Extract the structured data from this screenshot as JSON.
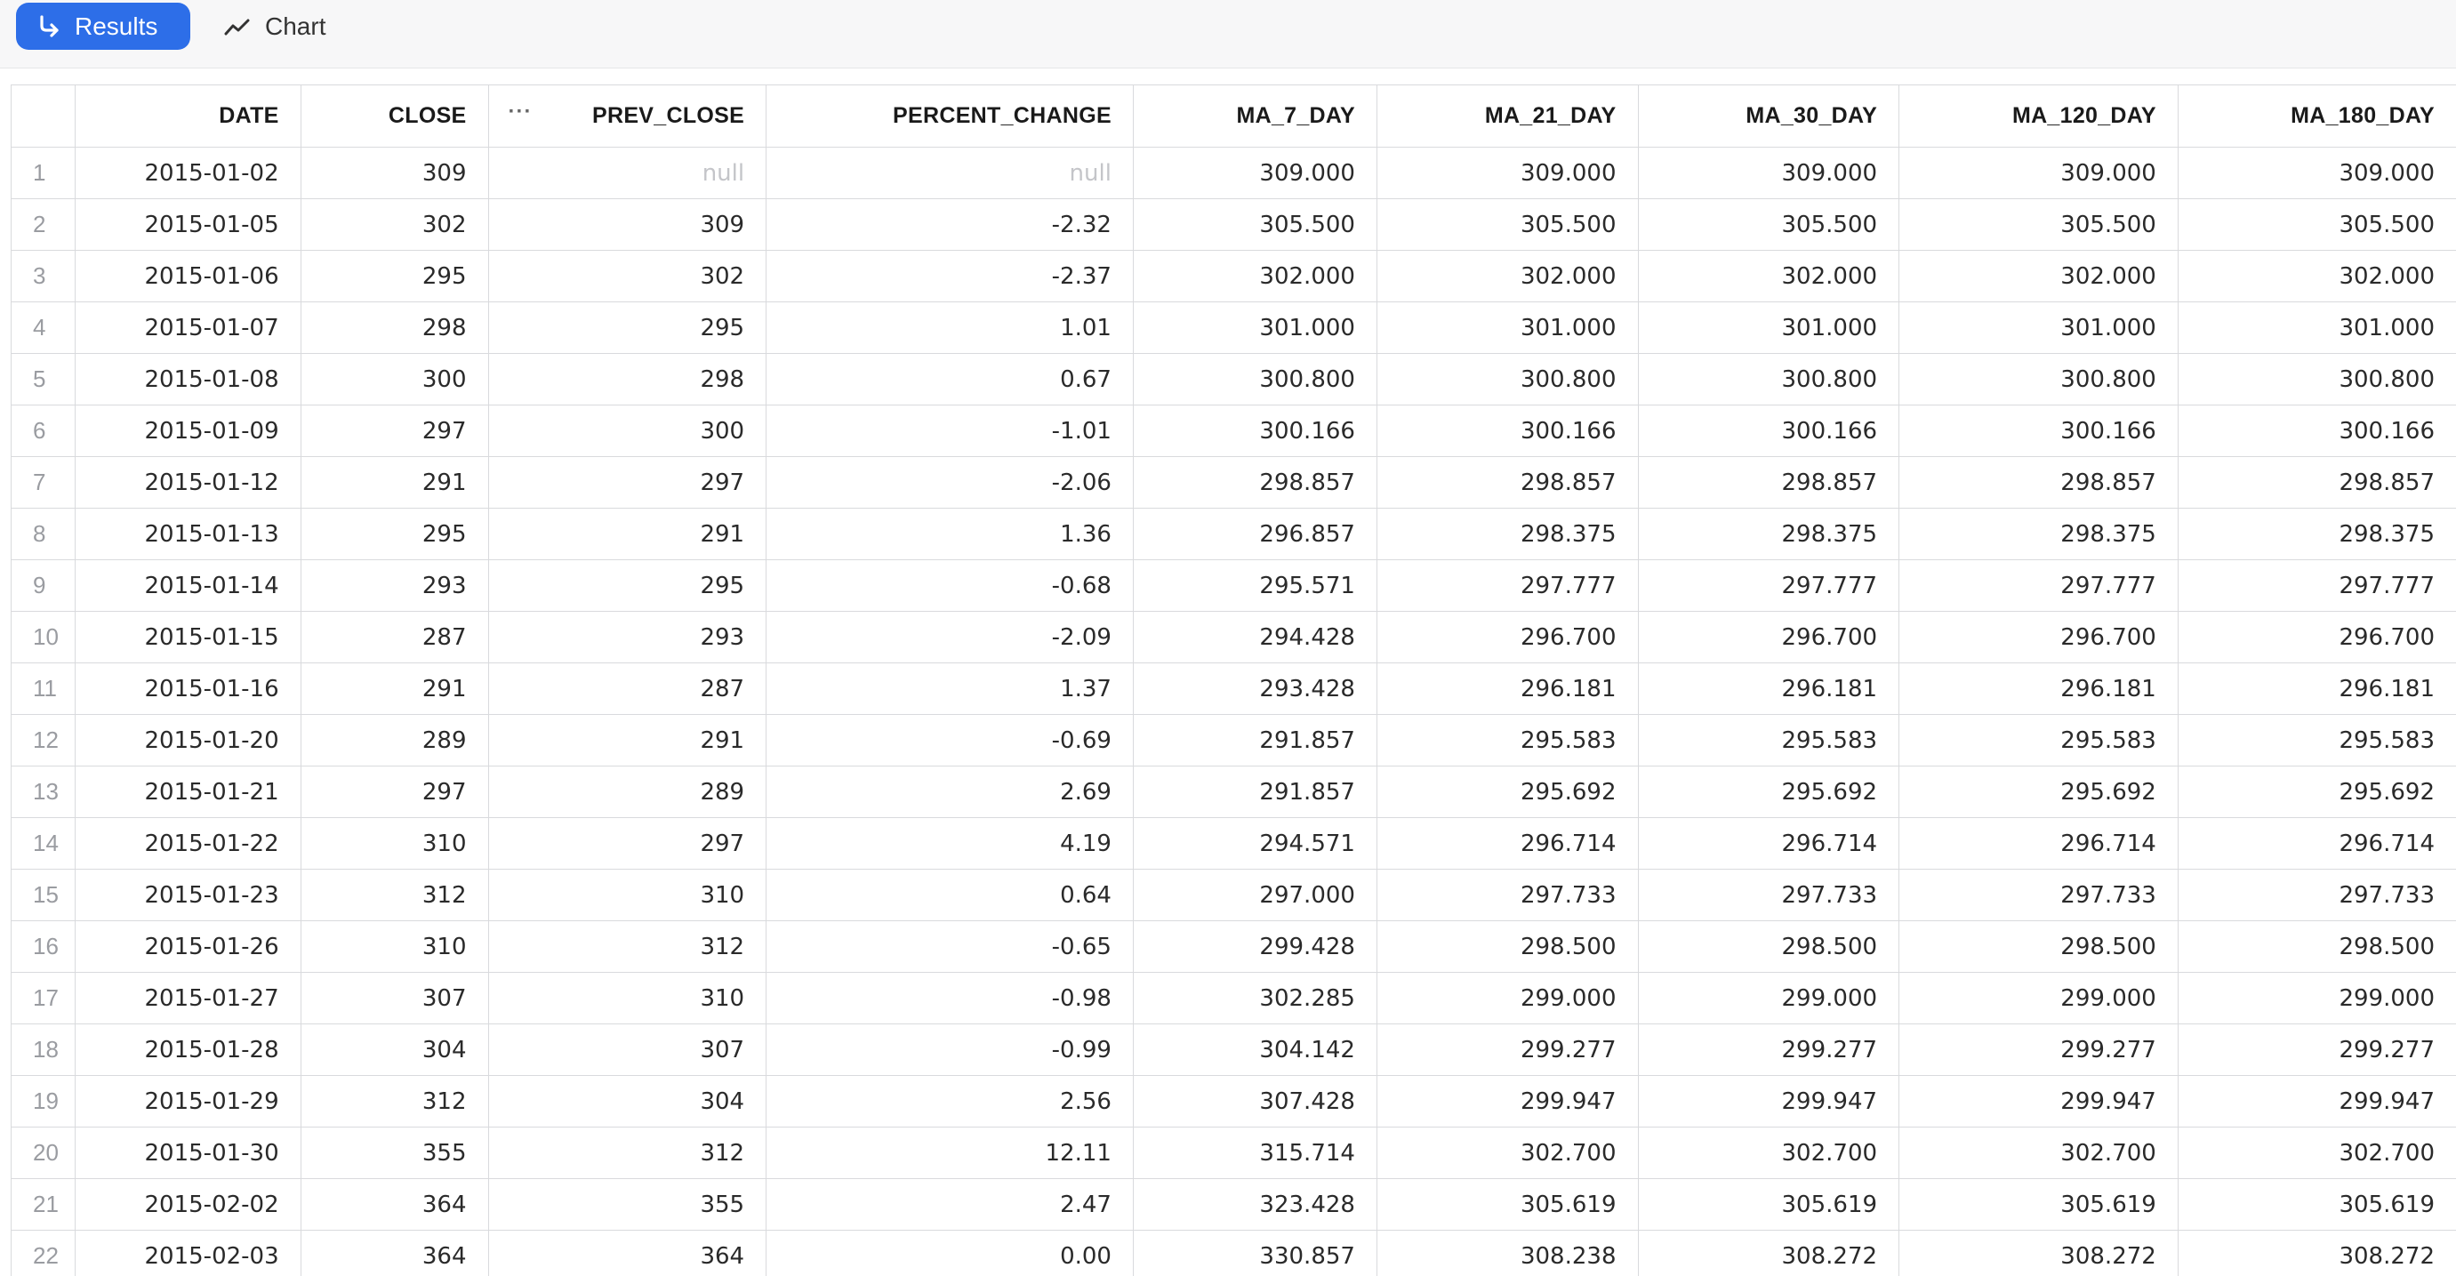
{
  "toolbar": {
    "results_label": "Results",
    "chart_label": "Chart",
    "results_icon": "arrow-return-icon",
    "chart_icon": "line-chart-icon"
  },
  "table": {
    "columns": [
      "",
      "DATE",
      "CLOSE",
      "PREV_CLOSE",
      "PERCENT_CHANGE",
      "MA_7_DAY",
      "MA_21_DAY",
      "MA_30_DAY",
      "MA_120_DAY",
      "MA_180_DAY"
    ],
    "column_menu_glyph": "···",
    "rows": [
      [
        "1",
        "2015-01-02",
        "309",
        "null",
        "null",
        "309.000",
        "309.000",
        "309.000",
        "309.000",
        "309.000"
      ],
      [
        "2",
        "2015-01-05",
        "302",
        "309",
        "-2.32",
        "305.500",
        "305.500",
        "305.500",
        "305.500",
        "305.500"
      ],
      [
        "3",
        "2015-01-06",
        "295",
        "302",
        "-2.37",
        "302.000",
        "302.000",
        "302.000",
        "302.000",
        "302.000"
      ],
      [
        "4",
        "2015-01-07",
        "298",
        "295",
        "1.01",
        "301.000",
        "301.000",
        "301.000",
        "301.000",
        "301.000"
      ],
      [
        "5",
        "2015-01-08",
        "300",
        "298",
        "0.67",
        "300.800",
        "300.800",
        "300.800",
        "300.800",
        "300.800"
      ],
      [
        "6",
        "2015-01-09",
        "297",
        "300",
        "-1.01",
        "300.166",
        "300.166",
        "300.166",
        "300.166",
        "300.166"
      ],
      [
        "7",
        "2015-01-12",
        "291",
        "297",
        "-2.06",
        "298.857",
        "298.857",
        "298.857",
        "298.857",
        "298.857"
      ],
      [
        "8",
        "2015-01-13",
        "295",
        "291",
        "1.36",
        "296.857",
        "298.375",
        "298.375",
        "298.375",
        "298.375"
      ],
      [
        "9",
        "2015-01-14",
        "293",
        "295",
        "-0.68",
        "295.571",
        "297.777",
        "297.777",
        "297.777",
        "297.777"
      ],
      [
        "10",
        "2015-01-15",
        "287",
        "293",
        "-2.09",
        "294.428",
        "296.700",
        "296.700",
        "296.700",
        "296.700"
      ],
      [
        "11",
        "2015-01-16",
        "291",
        "287",
        "1.37",
        "293.428",
        "296.181",
        "296.181",
        "296.181",
        "296.181"
      ],
      [
        "12",
        "2015-01-20",
        "289",
        "291",
        "-0.69",
        "291.857",
        "295.583",
        "295.583",
        "295.583",
        "295.583"
      ],
      [
        "13",
        "2015-01-21",
        "297",
        "289",
        "2.69",
        "291.857",
        "295.692",
        "295.692",
        "295.692",
        "295.692"
      ],
      [
        "14",
        "2015-01-22",
        "310",
        "297",
        "4.19",
        "294.571",
        "296.714",
        "296.714",
        "296.714",
        "296.714"
      ],
      [
        "15",
        "2015-01-23",
        "312",
        "310",
        "0.64",
        "297.000",
        "297.733",
        "297.733",
        "297.733",
        "297.733"
      ],
      [
        "16",
        "2015-01-26",
        "310",
        "312",
        "-0.65",
        "299.428",
        "298.500",
        "298.500",
        "298.500",
        "298.500"
      ],
      [
        "17",
        "2015-01-27",
        "307",
        "310",
        "-0.98",
        "302.285",
        "299.000",
        "299.000",
        "299.000",
        "299.000"
      ],
      [
        "18",
        "2015-01-28",
        "304",
        "307",
        "-0.99",
        "304.142",
        "299.277",
        "299.277",
        "299.277",
        "299.277"
      ],
      [
        "19",
        "2015-01-29",
        "312",
        "304",
        "2.56",
        "307.428",
        "299.947",
        "299.947",
        "299.947",
        "299.947"
      ],
      [
        "20",
        "2015-01-30",
        "355",
        "312",
        "12.11",
        "315.714",
        "302.700",
        "302.700",
        "302.700",
        "302.700"
      ],
      [
        "21",
        "2015-02-02",
        "364",
        "355",
        "2.47",
        "323.428",
        "305.619",
        "305.619",
        "305.619",
        "305.619"
      ],
      [
        "22",
        "2015-02-03",
        "364",
        "364",
        "0.00",
        "330.857",
        "308.238",
        "308.272",
        "308.272",
        "308.272"
      ]
    ]
  }
}
